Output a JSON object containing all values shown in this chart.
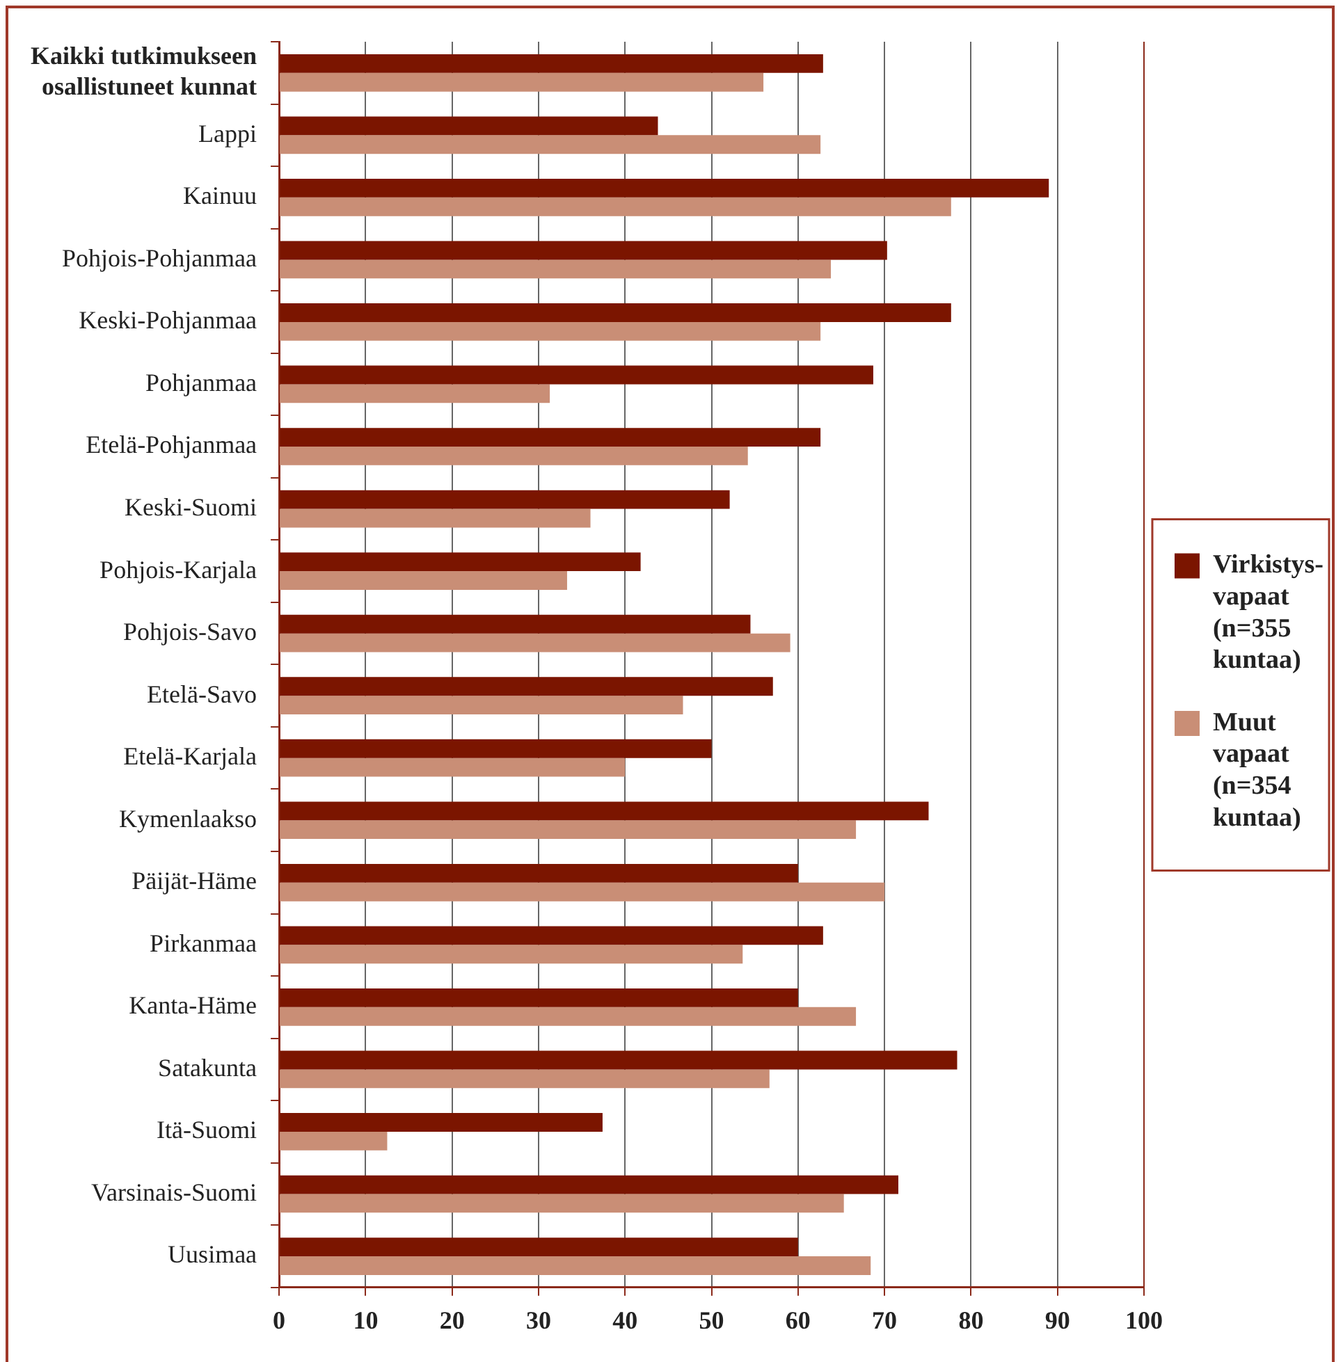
{
  "chart_data": {
    "type": "bar",
    "orientation": "horizontal",
    "categories": [
      "Kaikki tutkimukseen osallistuneet kunnat",
      "Lappi",
      "Kainuu",
      "Pohjois-Pohjanmaa",
      "Keski-Pohjanmaa",
      "Pohjanmaa",
      "Etelä-Pohjanmaa",
      "Keski-Suomi",
      "Pohjois-Karjala",
      "Pohjois-Savo",
      "Etelä-Savo",
      "Etelä-Karjala",
      "Kymenlaakso",
      "Päijät-Häme",
      "Pirkanmaa",
      "Kanta-Häme",
      "Satakunta",
      "Itä-Suomi",
      "Varsinais-Suomi",
      "Uusimaa"
    ],
    "series": [
      {
        "name": "Virkistys-vapaat (n=355 kuntaa)",
        "color": "#7b1500",
        "values": [
          62.9,
          43.8,
          89.0,
          70.3,
          77.7,
          68.7,
          62.6,
          52.1,
          41.8,
          54.5,
          57.1,
          50.0,
          75.1,
          60.0,
          62.9,
          60.0,
          78.4,
          37.4,
          71.6,
          60.0
        ]
      },
      {
        "name": "Muut vapaat (n=354 kuntaa)",
        "color": "#c98e76",
        "values": [
          56.0,
          62.6,
          77.7,
          63.8,
          62.6,
          31.3,
          54.2,
          36.0,
          33.3,
          59.1,
          46.7,
          40.0,
          66.7,
          70.0,
          53.6,
          66.7,
          56.7,
          12.5,
          65.3,
          68.4
        ]
      }
    ],
    "xlim": [
      0,
      100
    ],
    "xticks": [
      0,
      10,
      20,
      30,
      40,
      50,
      60,
      70,
      80,
      90,
      100
    ],
    "grid": "x",
    "legend": "right"
  }
}
